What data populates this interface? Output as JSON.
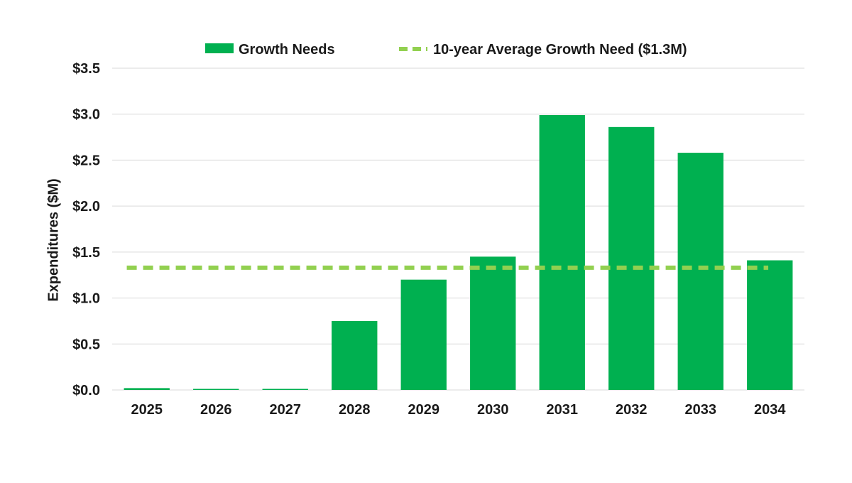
{
  "chart_data": {
    "type": "bar",
    "title": "",
    "xlabel": "",
    "ylabel": "Expenditures ($M)",
    "categories": [
      "2025",
      "2026",
      "2027",
      "2028",
      "2029",
      "2030",
      "2031",
      "2032",
      "2033",
      "2034"
    ],
    "series": [
      {
        "name": "Growth Needs",
        "type": "bar",
        "color": "#00b050",
        "values": [
          0.02,
          0.01,
          0.01,
          0.75,
          1.2,
          1.45,
          2.99,
          2.86,
          2.58,
          1.41
        ]
      },
      {
        "name": "10-year Average Growth Need ($1.3M)",
        "type": "line",
        "style": "dashed",
        "color": "#92d050",
        "values": [
          1.33,
          1.33,
          1.33,
          1.33,
          1.33,
          1.33,
          1.33,
          1.33,
          1.33,
          1.33
        ]
      }
    ],
    "ylim": [
      0,
      3.5
    ],
    "yticks": [
      0.0,
      0.5,
      1.0,
      1.5,
      2.0,
      2.5,
      3.0,
      3.5
    ],
    "ytick_labels": [
      "$0.0",
      "$0.5",
      "$1.0",
      "$1.5",
      "$2.0",
      "$2.5",
      "$3.0",
      "$3.5"
    ],
    "grid": true,
    "legend_position": "top"
  }
}
